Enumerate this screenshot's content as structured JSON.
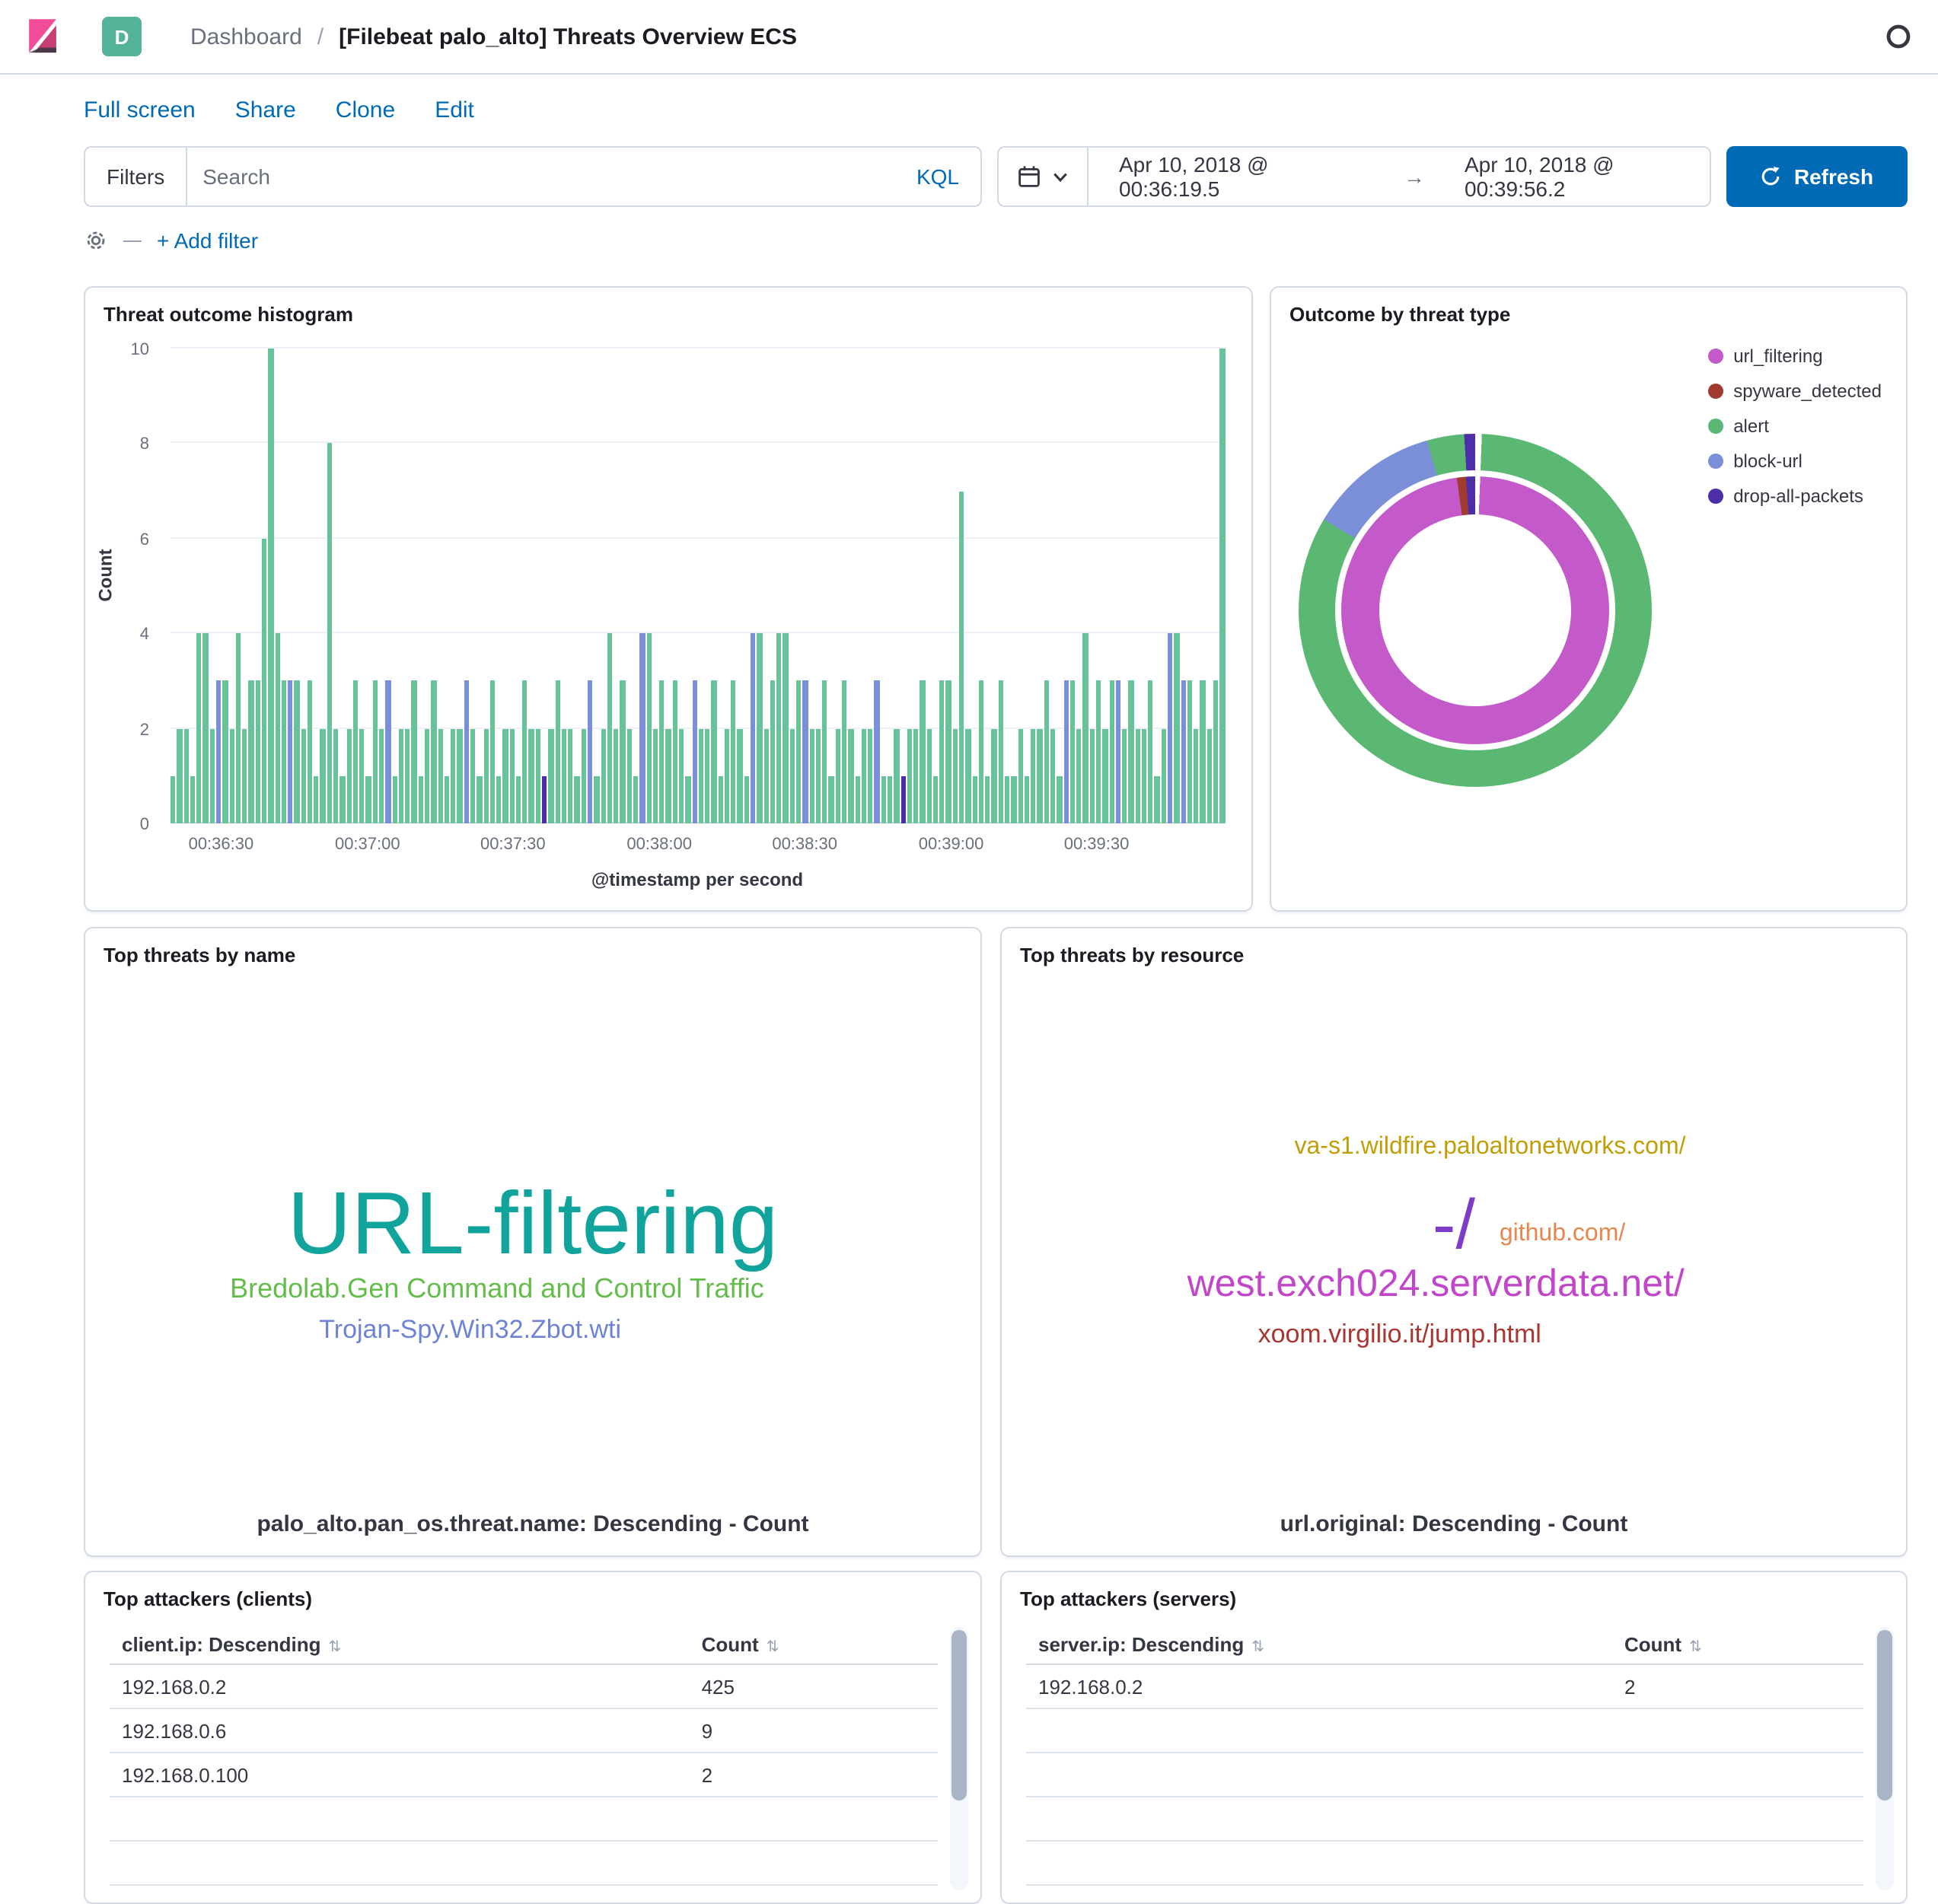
{
  "header": {
    "breadcrumb": {
      "root": "Dashboard",
      "separator": "/",
      "current": "[Filebeat palo_alto] Threats Overview ECS"
    },
    "app_badge": "D"
  },
  "toolbar": {
    "links": [
      "Full screen",
      "Share",
      "Clone",
      "Edit"
    ]
  },
  "query_bar": {
    "filters_label": "Filters",
    "search_placeholder": "Search",
    "kql_label": "KQL",
    "date_from": "Apr 10, 2018 @ 00:36:19.5",
    "date_arrow": "→",
    "date_to": "Apr 10, 2018 @ 00:39:56.2",
    "refresh_label": "Refresh",
    "add_filter_label": "+ Add filter"
  },
  "panels": {
    "histogram": {
      "title": "Threat outcome histogram"
    },
    "donut": {
      "title": "Outcome by threat type"
    },
    "cloud_name": {
      "title": "Top threats by name",
      "footer": "palo_alto.pan_os.threat.name: Descending - Count"
    },
    "cloud_resource": {
      "title": "Top threats by resource",
      "footer": "url.original: Descending - Count"
    },
    "clients": {
      "title": "Top attackers (clients)"
    },
    "servers": {
      "title": "Top attackers (servers)"
    }
  },
  "chart_data": [
    {
      "id": "threat_outcome_histogram",
      "type": "bar",
      "title": "Threat outcome histogram",
      "xlabel": "@timestamp per second",
      "ylabel": "Count",
      "ylim": [
        0,
        10
      ],
      "y_ticks": [
        0,
        2,
        4,
        6,
        8,
        10
      ],
      "x_range": [
        "00:36:19.5",
        "00:39:56.2"
      ],
      "x_ticks": [
        {
          "label": "00:36:30",
          "pct": 4.8
        },
        {
          "label": "00:37:00",
          "pct": 18.7
        },
        {
          "label": "00:37:30",
          "pct": 32.5
        },
        {
          "label": "00:38:00",
          "pct": 46.4
        },
        {
          "label": "00:38:30",
          "pct": 60.2
        },
        {
          "label": "00:39:00",
          "pct": 74.1
        },
        {
          "label": "00:39:30",
          "pct": 87.9
        }
      ],
      "series_colors": {
        "g": {
          "name": "alert",
          "color": "#68C39B"
        },
        "b": {
          "name": "block-url",
          "color": "#7B8FD9"
        },
        "p": {
          "name": "drop-all-packets",
          "color": "#4B2EA8"
        }
      },
      "bars": [
        [
          1,
          "g"
        ],
        [
          2,
          "g"
        ],
        [
          2,
          "g"
        ],
        [
          1,
          "g"
        ],
        [
          4,
          "g"
        ],
        [
          4,
          "g"
        ],
        [
          2,
          "g"
        ],
        [
          3,
          "b"
        ],
        [
          3,
          "g"
        ],
        [
          2,
          "g"
        ],
        [
          4,
          "g"
        ],
        [
          2,
          "g"
        ],
        [
          3,
          "g"
        ],
        [
          3,
          "g"
        ],
        [
          6,
          "g"
        ],
        [
          10,
          "g"
        ],
        [
          4,
          "g"
        ],
        [
          3,
          "g"
        ],
        [
          3,
          "b"
        ],
        [
          3,
          "g"
        ],
        [
          2,
          "g"
        ],
        [
          3,
          "g"
        ],
        [
          1,
          "g"
        ],
        [
          2,
          "g"
        ],
        [
          8,
          "g"
        ],
        [
          2,
          "g"
        ],
        [
          1,
          "g"
        ],
        [
          2,
          "g"
        ],
        [
          3,
          "g"
        ],
        [
          2,
          "g"
        ],
        [
          1,
          "g"
        ],
        [
          3,
          "g"
        ],
        [
          2,
          "g"
        ],
        [
          3,
          "b"
        ],
        [
          1,
          "g"
        ],
        [
          2,
          "g"
        ],
        [
          2,
          "g"
        ],
        [
          3,
          "g"
        ],
        [
          1,
          "g"
        ],
        [
          2,
          "g"
        ],
        [
          3,
          "g"
        ],
        [
          2,
          "g"
        ],
        [
          1,
          "g"
        ],
        [
          2,
          "g"
        ],
        [
          2,
          "g"
        ],
        [
          3,
          "b"
        ],
        [
          2,
          "g"
        ],
        [
          1,
          "g"
        ],
        [
          2,
          "g"
        ],
        [
          3,
          "g"
        ],
        [
          1,
          "g"
        ],
        [
          2,
          "g"
        ],
        [
          2,
          "g"
        ],
        [
          1,
          "g"
        ],
        [
          3,
          "g"
        ],
        [
          2,
          "g"
        ],
        [
          2,
          "g"
        ],
        [
          1,
          "p"
        ],
        [
          2,
          "g"
        ],
        [
          3,
          "g"
        ],
        [
          2,
          "g"
        ],
        [
          2,
          "g"
        ],
        [
          1,
          "g"
        ],
        [
          2,
          "g"
        ],
        [
          3,
          "b"
        ],
        [
          1,
          "g"
        ],
        [
          2,
          "g"
        ],
        [
          4,
          "g"
        ],
        [
          2,
          "g"
        ],
        [
          3,
          "g"
        ],
        [
          2,
          "g"
        ],
        [
          1,
          "g"
        ],
        [
          4,
          "b"
        ],
        [
          4,
          "g"
        ],
        [
          2,
          "g"
        ],
        [
          3,
          "g"
        ],
        [
          2,
          "g"
        ],
        [
          3,
          "g"
        ],
        [
          2,
          "g"
        ],
        [
          1,
          "g"
        ],
        [
          3,
          "b"
        ],
        [
          2,
          "g"
        ],
        [
          2,
          "g"
        ],
        [
          3,
          "g"
        ],
        [
          1,
          "g"
        ],
        [
          2,
          "g"
        ],
        [
          3,
          "g"
        ],
        [
          2,
          "g"
        ],
        [
          1,
          "g"
        ],
        [
          4,
          "b"
        ],
        [
          4,
          "g"
        ],
        [
          2,
          "g"
        ],
        [
          3,
          "g"
        ],
        [
          4,
          "g"
        ],
        [
          4,
          "g"
        ],
        [
          2,
          "g"
        ],
        [
          3,
          "g"
        ],
        [
          3,
          "b"
        ],
        [
          2,
          "g"
        ],
        [
          2,
          "g"
        ],
        [
          3,
          "g"
        ],
        [
          1,
          "g"
        ],
        [
          2,
          "g"
        ],
        [
          3,
          "g"
        ],
        [
          2,
          "g"
        ],
        [
          1,
          "g"
        ],
        [
          2,
          "g"
        ],
        [
          2,
          "g"
        ],
        [
          3,
          "b"
        ],
        [
          1,
          "g"
        ],
        [
          1,
          "g"
        ],
        [
          2,
          "g"
        ],
        [
          1,
          "p"
        ],
        [
          2,
          "g"
        ],
        [
          2,
          "g"
        ],
        [
          3,
          "g"
        ],
        [
          2,
          "g"
        ],
        [
          1,
          "g"
        ],
        [
          3,
          "g"
        ],
        [
          3,
          "g"
        ],
        [
          2,
          "g"
        ],
        [
          7,
          "g"
        ],
        [
          2,
          "g"
        ],
        [
          1,
          "g"
        ],
        [
          3,
          "g"
        ],
        [
          1,
          "g"
        ],
        [
          2,
          "g"
        ],
        [
          3,
          "g"
        ],
        [
          1,
          "g"
        ],
        [
          1,
          "g"
        ],
        [
          2,
          "g"
        ],
        [
          1,
          "g"
        ],
        [
          2,
          "g"
        ],
        [
          2,
          "g"
        ],
        [
          3,
          "g"
        ],
        [
          2,
          "g"
        ],
        [
          1,
          "g"
        ],
        [
          3,
          "b"
        ],
        [
          3,
          "g"
        ],
        [
          2,
          "g"
        ],
        [
          4,
          "g"
        ],
        [
          2,
          "g"
        ],
        [
          3,
          "g"
        ],
        [
          2,
          "g"
        ],
        [
          3,
          "g"
        ],
        [
          3,
          "b"
        ],
        [
          2,
          "g"
        ],
        [
          3,
          "g"
        ],
        [
          2,
          "g"
        ],
        [
          2,
          "g"
        ],
        [
          3,
          "g"
        ],
        [
          1,
          "g"
        ],
        [
          2,
          "g"
        ],
        [
          4,
          "b"
        ],
        [
          4,
          "g"
        ],
        [
          3,
          "b"
        ],
        [
          3,
          "g"
        ],
        [
          2,
          "g"
        ],
        [
          3,
          "g"
        ],
        [
          2,
          "g"
        ],
        [
          3,
          "g"
        ],
        [
          10,
          "g"
        ]
      ]
    },
    {
      "id": "outcome_by_threat_type",
      "type": "pie",
      "title": "Outcome by threat type",
      "legend": [
        {
          "label": "url_filtering",
          "color": "#C45AC9"
        },
        {
          "label": "spyware_detected",
          "color": "#A13B30"
        },
        {
          "label": "alert",
          "color": "#5BB873"
        },
        {
          "label": "block-url",
          "color": "#7B8FD9"
        },
        {
          "label": "drop-all-packets",
          "color": "#4B2EA8"
        }
      ],
      "rings": {
        "inner": [
          {
            "label": "url_filtering",
            "pct": 97.2,
            "color": "#C45AC9"
          },
          {
            "label": "spyware_detected",
            "pct": 1.1,
            "color": "#A13B30"
          },
          {
            "label": "drop-all-packets",
            "pct": 1.1,
            "color": "#4B2EA8"
          }
        ],
        "outer": [
          {
            "label": "alert",
            "pct": 83.0,
            "color": "#5BB873"
          },
          {
            "label": "block-url",
            "pct": 12.0,
            "color": "#7B8FD9"
          },
          {
            "label": "alert",
            "pct": 3.4,
            "color": "#5BB873"
          },
          {
            "label": "drop-all-packets",
            "pct": 1.0,
            "color": "#4B2EA8"
          }
        ]
      }
    },
    {
      "id": "top_threats_by_name",
      "type": "tagcloud",
      "footer": "palo_alto.pan_os.threat.name: Descending - Count",
      "words": [
        {
          "text": "URL-filtering",
          "color": "#10A49C",
          "size": 58,
          "x": 50,
          "y": 50
        },
        {
          "text": "Bredolab.Gen Command and Control Traffic",
          "color": "#64BC4B",
          "size": 18,
          "x": 46,
          "y": 63
        },
        {
          "text": "Trojan-Spy.Win32.Zbot.wti",
          "color": "#6F83D5",
          "size": 17,
          "x": 43,
          "y": 71
        }
      ]
    },
    {
      "id": "top_threats_by_resource",
      "type": "tagcloud",
      "footer": "url.original: Descending - Count",
      "words": [
        {
          "text": "va-s1.wildfire.paloaltonetworks.com/",
          "color": "#C19E07",
          "size": 16,
          "x": 54,
          "y": 35
        },
        {
          "text": "-/",
          "color": "#7E3CC8",
          "size": 46,
          "x": 50,
          "y": 50
        },
        {
          "text": "github.com/",
          "color": "#E7874F",
          "size": 16,
          "x": 62,
          "y": 52
        },
        {
          "text": "west.exch024.serverdata.net/",
          "color": "#C146C9",
          "size": 25,
          "x": 48,
          "y": 62
        },
        {
          "text": "xoom.virgilio.it/jump.html",
          "color": "#A93630",
          "size": 17,
          "x": 44,
          "y": 72
        }
      ]
    },
    {
      "id": "top_attackers_clients",
      "type": "table",
      "columns": [
        "client.ip: Descending",
        "Count"
      ],
      "rows": [
        [
          "192.168.0.2",
          "425"
        ],
        [
          "192.168.0.6",
          "9"
        ],
        [
          "192.168.0.100",
          "2"
        ]
      ],
      "empty_rows": 3
    },
    {
      "id": "top_attackers_servers",
      "type": "table",
      "columns": [
        "server.ip: Descending",
        "Count"
      ],
      "rows": [
        [
          "192.168.0.2",
          "2"
        ]
      ],
      "empty_rows": 4
    }
  ]
}
